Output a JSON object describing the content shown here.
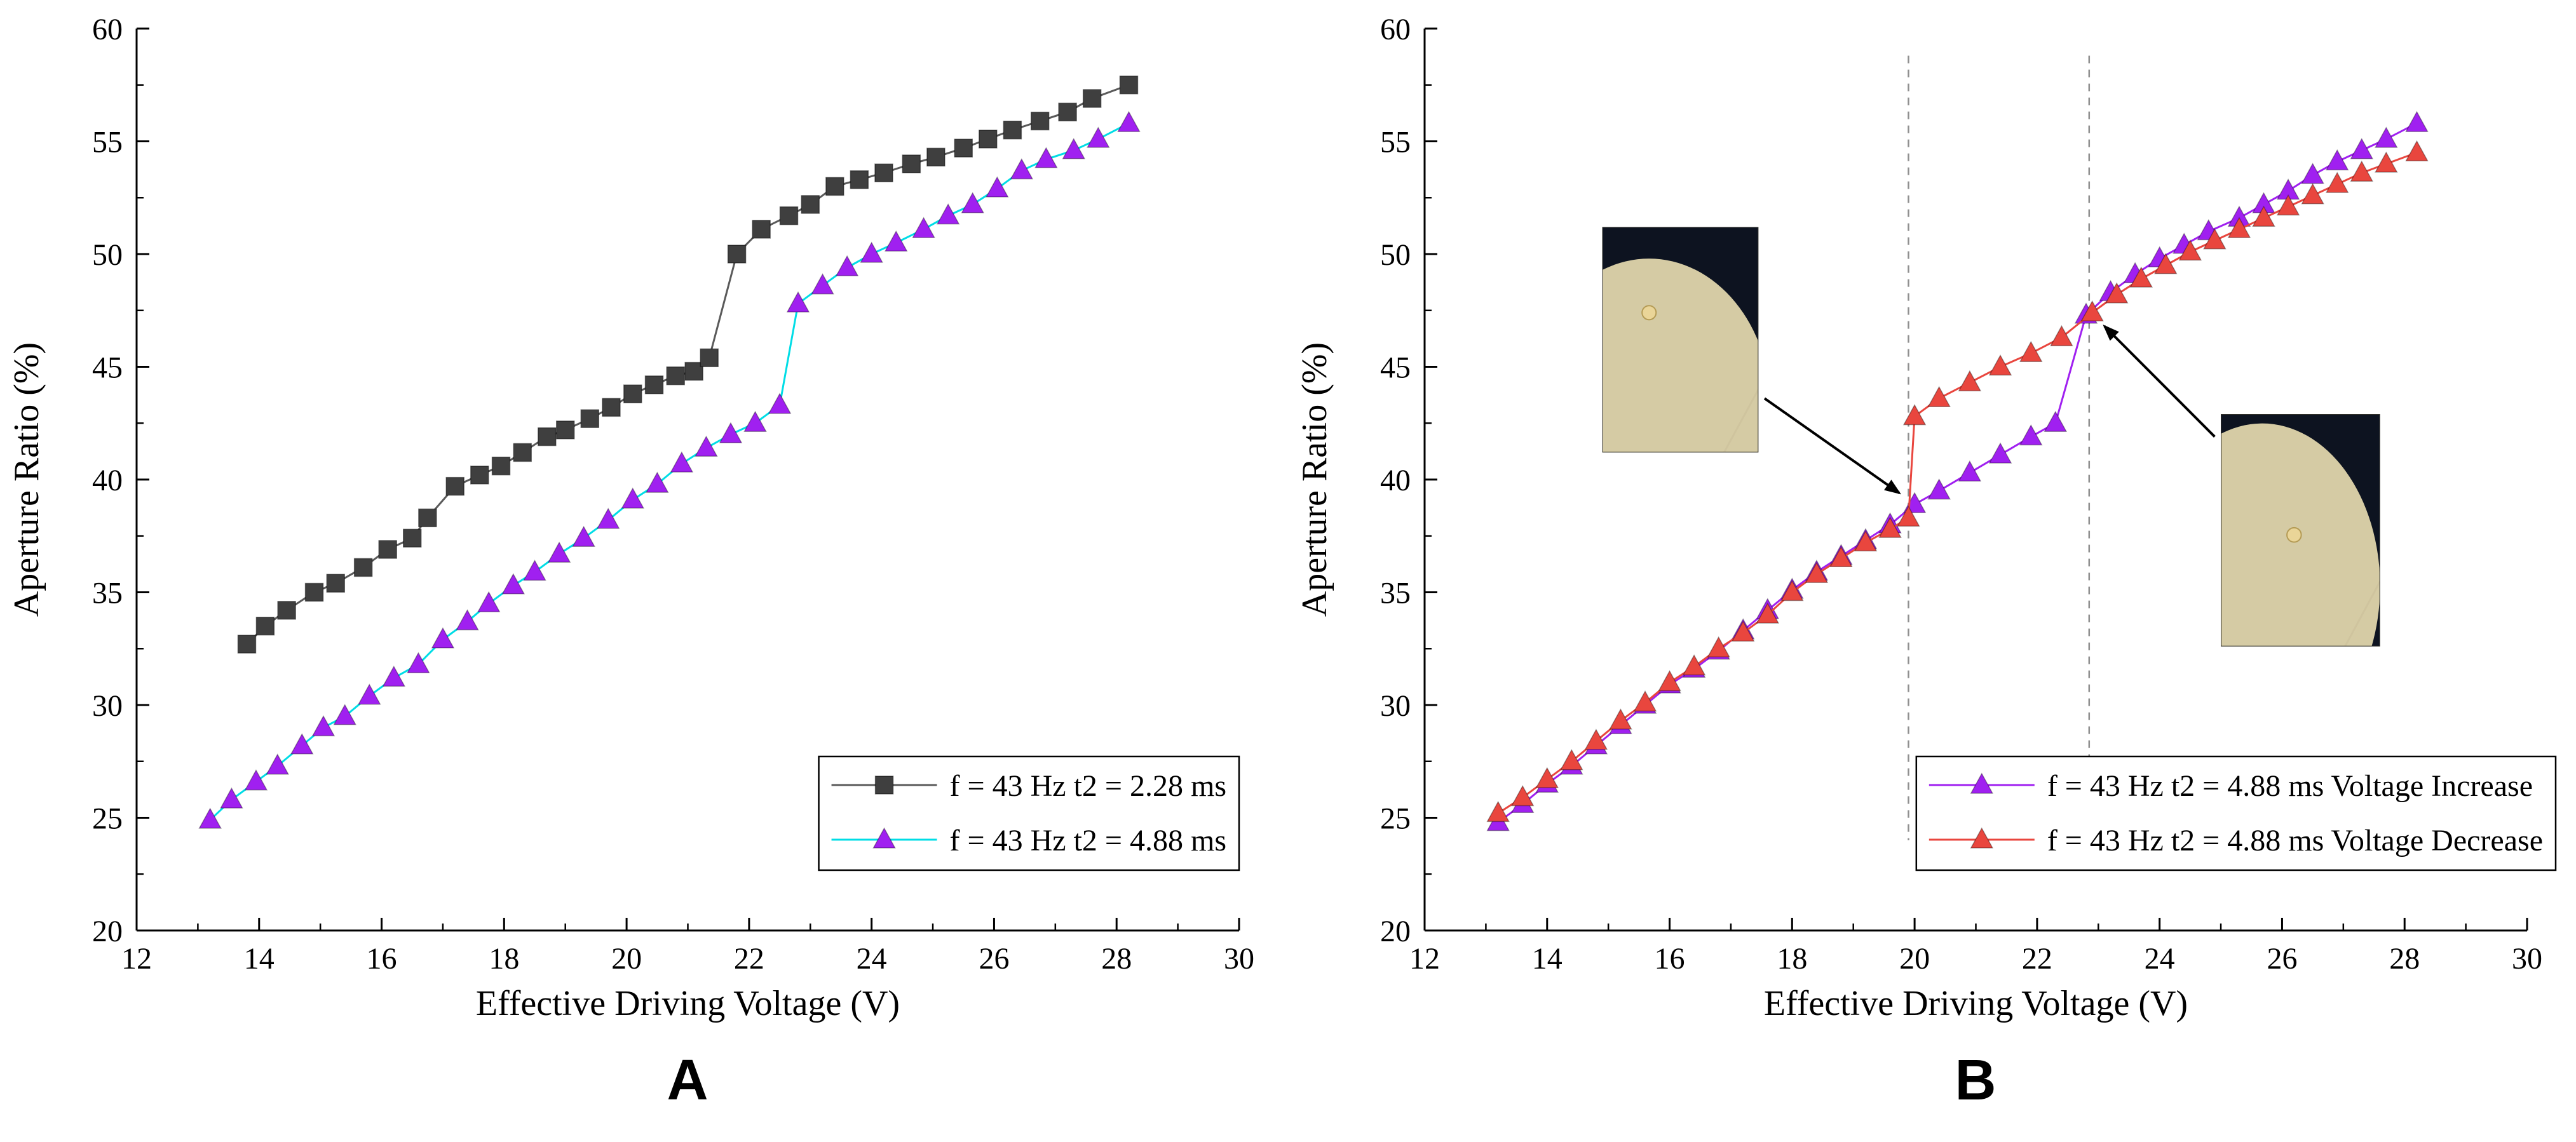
{
  "figure": {
    "background": "#ffffff"
  },
  "chart_data": [
    {
      "type": "line",
      "panel_label": "A",
      "title": "",
      "xlabel": "Effective Driving Voltage (V)",
      "ylabel": "Aperture Ratio (%)",
      "xlim": [
        12,
        30
      ],
      "ylim": [
        20,
        60
      ],
      "xticks": [
        12,
        14,
        16,
        18,
        20,
        22,
        24,
        26,
        28,
        30
      ],
      "yticks": [
        20,
        25,
        30,
        35,
        40,
        45,
        50,
        55,
        60
      ],
      "x_minor_step": 1,
      "y_minor_step": 2.5,
      "grid": false,
      "legend_position": "bottom-right",
      "legend_overhang": 0,
      "series": [
        {
          "name": "f = 43 Hz t2 = 2.28 ms",
          "marker": "square",
          "color": "#3f3f3f",
          "line_color": "#5a5a5a",
          "points": [
            [
              13.8,
              32.7
            ],
            [
              14.1,
              33.5
            ],
            [
              14.45,
              34.2
            ],
            [
              14.9,
              35.0
            ],
            [
              15.25,
              35.4
            ],
            [
              15.7,
              36.1
            ],
            [
              16.1,
              36.9
            ],
            [
              16.5,
              37.4
            ],
            [
              16.75,
              38.3
            ],
            [
              17.2,
              39.7
            ],
            [
              17.6,
              40.2
            ],
            [
              17.95,
              40.6
            ],
            [
              18.3,
              41.2
            ],
            [
              18.7,
              41.9
            ],
            [
              19.0,
              42.2
            ],
            [
              19.4,
              42.7
            ],
            [
              19.75,
              43.2
            ],
            [
              20.1,
              43.8
            ],
            [
              20.45,
              44.2
            ],
            [
              20.8,
              44.6
            ],
            [
              21.1,
              44.8
            ],
            [
              21.35,
              45.4
            ],
            [
              21.8,
              50.0
            ],
            [
              22.2,
              51.1
            ],
            [
              22.65,
              51.7
            ],
            [
              23.0,
              52.2
            ],
            [
              23.4,
              53.0
            ],
            [
              23.8,
              53.3
            ],
            [
              24.2,
              53.6
            ],
            [
              24.65,
              54.0
            ],
            [
              25.05,
              54.3
            ],
            [
              25.5,
              54.7
            ],
            [
              25.9,
              55.1
            ],
            [
              26.3,
              55.5
            ],
            [
              26.75,
              55.9
            ],
            [
              27.2,
              56.3
            ],
            [
              27.6,
              56.9
            ],
            [
              28.2,
              57.5
            ]
          ]
        },
        {
          "name": "f = 43 Hz t2 = 4.88 ms",
          "marker": "triangle",
          "color": "#a020f0",
          "line_color": "#00dde6",
          "points": [
            [
              13.2,
              24.9
            ],
            [
              13.55,
              25.8
            ],
            [
              13.95,
              26.6
            ],
            [
              14.3,
              27.3
            ],
            [
              14.7,
              28.2
            ],
            [
              15.05,
              29.0
            ],
            [
              15.4,
              29.5
            ],
            [
              15.8,
              30.4
            ],
            [
              16.2,
              31.2
            ],
            [
              16.6,
              31.8
            ],
            [
              17.0,
              32.9
            ],
            [
              17.4,
              33.7
            ],
            [
              17.75,
              34.5
            ],
            [
              18.15,
              35.3
            ],
            [
              18.5,
              35.9
            ],
            [
              18.9,
              36.7
            ],
            [
              19.3,
              37.4
            ],
            [
              19.7,
              38.2
            ],
            [
              20.1,
              39.1
            ],
            [
              20.5,
              39.8
            ],
            [
              20.9,
              40.7
            ],
            [
              21.3,
              41.4
            ],
            [
              21.7,
              42.0
            ],
            [
              22.1,
              42.5
            ],
            [
              22.5,
              43.3
            ],
            [
              22.8,
              47.8
            ],
            [
              23.2,
              48.6
            ],
            [
              23.6,
              49.4
            ],
            [
              24.0,
              50.0
            ],
            [
              24.4,
              50.5
            ],
            [
              24.85,
              51.1
            ],
            [
              25.25,
              51.7
            ],
            [
              25.65,
              52.2
            ],
            [
              26.05,
              52.9
            ],
            [
              26.45,
              53.7
            ],
            [
              26.85,
              54.2
            ],
            [
              27.3,
              54.6
            ],
            [
              27.7,
              55.1
            ],
            [
              28.2,
              55.8
            ]
          ]
        }
      ]
    },
    {
      "type": "line",
      "panel_label": "B",
      "title": "",
      "xlabel": "Effective Driving Voltage (V)",
      "ylabel": "Aperture Ratio (%)",
      "xlim": [
        12,
        30
      ],
      "ylim": [
        20,
        60
      ],
      "xticks": [
        12,
        14,
        16,
        18,
        20,
        22,
        24,
        26,
        28,
        30
      ],
      "yticks": [
        20,
        25,
        30,
        35,
        40,
        45,
        50,
        55,
        60
      ],
      "x_minor_step": 1,
      "y_minor_step": 2.5,
      "grid": false,
      "legend_position": "bottom-right",
      "legend_overhang": 45,
      "vlines": [
        {
          "x": 19.9,
          "y0": 24.0,
          "y1": 58.8,
          "style": "dashed",
          "color": "#8f8f8f"
        },
        {
          "x": 22.85,
          "y0": 24.0,
          "y1": 58.8,
          "style": "dashed",
          "color": "#8f8f8f"
        }
      ],
      "insets": [
        {
          "name": "lc-cell-micrograph-threshold-down",
          "x0": 14.9,
          "x1": 17.45,
          "y0": 41.2,
          "y1": 51.2,
          "dark_color": "#0d1320",
          "light_color": "#d5cba4",
          "blob": [
            0.3,
            0.8,
            0.78,
            0.66
          ],
          "dot": [
            0.3,
            0.38
          ],
          "dot_color": "#ead598"
        },
        {
          "name": "lc-cell-micrograph-threshold-up",
          "x0": 25.0,
          "x1": 27.6,
          "y0": 32.6,
          "y1": 42.9,
          "dark_color": "#0d1320",
          "light_color": "#d5cba4",
          "blob": [
            0.26,
            0.74,
            0.74,
            0.7
          ],
          "dot": [
            0.46,
            0.52
          ],
          "dot_color": "#ead598"
        }
      ],
      "arrows": [
        {
          "from": [
            17.55,
            43.6
          ],
          "to": [
            19.75,
            39.4
          ]
        },
        {
          "from": [
            24.9,
            41.9
          ],
          "to": [
            23.1,
            46.8
          ]
        }
      ],
      "series": [
        {
          "name": "f = 43 Hz t2 = 4.88 ms Voltage Increase",
          "marker": "triangle",
          "color": "#a020f0",
          "line_color": "#a020f0",
          "points": [
            [
              13.2,
              24.8
            ],
            [
              13.6,
              25.6
            ],
            [
              14.0,
              26.5
            ],
            [
              14.4,
              27.3
            ],
            [
              14.8,
              28.2
            ],
            [
              15.2,
              29.1
            ],
            [
              15.6,
              30.0
            ],
            [
              16.0,
              30.9
            ],
            [
              16.4,
              31.6
            ],
            [
              16.8,
              32.4
            ],
            [
              17.2,
              33.3
            ],
            [
              17.6,
              34.2
            ],
            [
              18.0,
              35.1
            ],
            [
              18.4,
              35.9
            ],
            [
              18.8,
              36.6
            ],
            [
              19.2,
              37.3
            ],
            [
              19.6,
              38.0
            ],
            [
              20.0,
              38.9
            ],
            [
              20.4,
              39.5
            ],
            [
              20.9,
              40.3
            ],
            [
              21.4,
              41.1
            ],
            [
              21.9,
              41.9
            ],
            [
              22.3,
              42.5
            ],
            [
              22.8,
              47.3
            ],
            [
              23.2,
              48.3
            ],
            [
              23.6,
              49.1
            ],
            [
              24.0,
              49.8
            ],
            [
              24.4,
              50.4
            ],
            [
              24.8,
              51.0
            ],
            [
              25.3,
              51.6
            ],
            [
              25.7,
              52.2
            ],
            [
              26.1,
              52.8
            ],
            [
              26.5,
              53.5
            ],
            [
              26.9,
              54.1
            ],
            [
              27.3,
              54.6
            ],
            [
              27.7,
              55.1
            ],
            [
              28.2,
              55.8
            ]
          ]
        },
        {
          "name": "f = 43 Hz t2 = 4.88 ms Voltage Decrease",
          "marker": "triangle",
          "color": "#e9463e",
          "line_color": "#e9463e",
          "points": [
            [
              13.2,
              25.2
            ],
            [
              13.6,
              25.9
            ],
            [
              14.0,
              26.7
            ],
            [
              14.4,
              27.5
            ],
            [
              14.8,
              28.4
            ],
            [
              15.2,
              29.3
            ],
            [
              15.6,
              30.1
            ],
            [
              16.0,
              31.0
            ],
            [
              16.4,
              31.7
            ],
            [
              16.8,
              32.5
            ],
            [
              17.2,
              33.2
            ],
            [
              17.6,
              34.0
            ],
            [
              18.0,
              35.0
            ],
            [
              18.4,
              35.8
            ],
            [
              18.8,
              36.5
            ],
            [
              19.2,
              37.2
            ],
            [
              19.6,
              37.8
            ],
            [
              19.9,
              38.3
            ],
            [
              20.0,
              42.8
            ],
            [
              20.4,
              43.6
            ],
            [
              20.9,
              44.3
            ],
            [
              21.4,
              45.0
            ],
            [
              21.9,
              45.6
            ],
            [
              22.4,
              46.3
            ],
            [
              22.9,
              47.4
            ],
            [
              23.3,
              48.2
            ],
            [
              23.7,
              48.9
            ],
            [
              24.1,
              49.5
            ],
            [
              24.5,
              50.1
            ],
            [
              24.9,
              50.6
            ],
            [
              25.3,
              51.1
            ],
            [
              25.7,
              51.6
            ],
            [
              26.1,
              52.1
            ],
            [
              26.5,
              52.6
            ],
            [
              26.9,
              53.1
            ],
            [
              27.3,
              53.6
            ],
            [
              27.7,
              54.0
            ],
            [
              28.2,
              54.5
            ]
          ]
        }
      ]
    }
  ]
}
